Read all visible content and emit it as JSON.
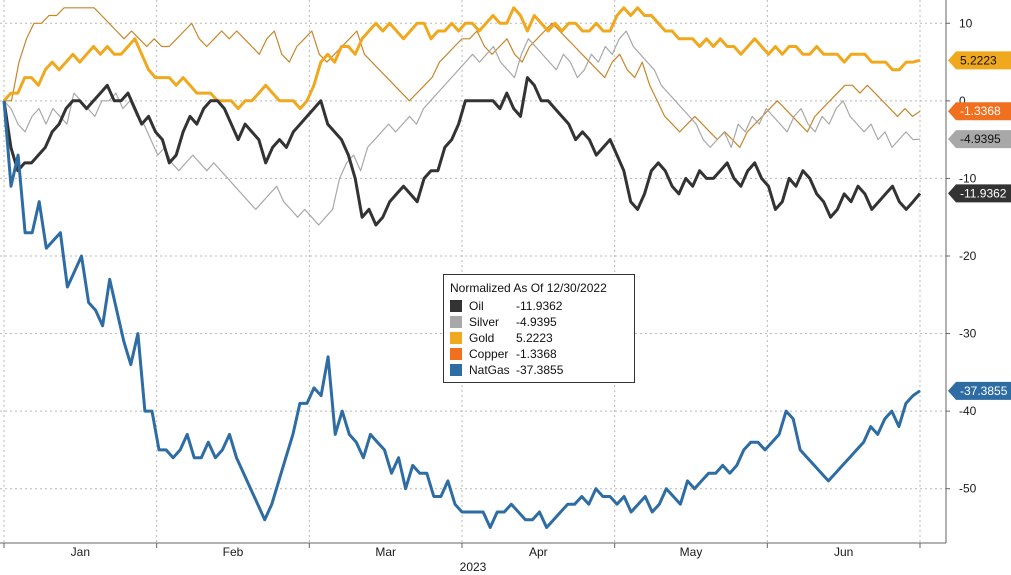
{
  "chart_data": {
    "type": "line",
    "title": "",
    "xlabel": "2023",
    "ylabel": "",
    "ylim": [
      -57,
      13
    ],
    "y_ticks": [
      10,
      0,
      -10,
      -20,
      -30,
      -40,
      -50
    ],
    "x_ticks": [
      "Jan",
      "Feb",
      "Mar",
      "Apr",
      "May",
      "Jun"
    ],
    "grid": true,
    "y_axis_side": "right",
    "legend": {
      "placement": "center",
      "title": "Normalized As Of 12/30/2022",
      "entries": [
        {
          "name": "Oil",
          "value": "-11.9362",
          "color": "#333333"
        },
        {
          "name": "Silver",
          "value": "-4.9395",
          "color": "#a8a8a8"
        },
        {
          "name": "Gold",
          "value": "5.2223",
          "color": "#f0a81e"
        },
        {
          "name": "Copper",
          "value": "-1.3368",
          "color": "#f07020"
        },
        {
          "name": "NatGas",
          "value": "-37.3855",
          "color": "#2e6ca4"
        }
      ]
    },
    "series": [
      {
        "name": "Oil",
        "color": "#333333",
        "last_label": "-11.9362",
        "badge_color": "#333333",
        "values": [
          0,
          -6,
          -9,
          -8,
          -8,
          -7,
          -6,
          -4,
          -3,
          -1,
          0,
          0,
          -1,
          0,
          1,
          2,
          0,
          0,
          1,
          -1,
          -3,
          -2,
          -4,
          -5,
          -8,
          -7,
          -4,
          -2,
          -3,
          -1,
          0,
          0,
          -1,
          -3,
          -5,
          -3,
          -4,
          -5,
          -8,
          -6,
          -5,
          -6,
          -4,
          -3,
          -2,
          -1,
          0,
          -3,
          -4,
          -5,
          -7,
          -10,
          -15,
          -14,
          -16,
          -15,
          -13,
          -12,
          -11,
          -12,
          -13,
          -10,
          -9,
          -9,
          -6,
          -5,
          -3,
          0,
          0,
          0,
          0,
          0,
          -1,
          1,
          -1,
          -2,
          3,
          2,
          0,
          0,
          -1,
          -2,
          -3,
          -5,
          -4,
          -5,
          -7,
          -6,
          -5,
          -7,
          -9,
          -13,
          -14,
          -12,
          -9,
          -8,
          -9,
          -11,
          -12,
          -10,
          -11,
          -9,
          -10,
          -10,
          -9,
          -8,
          -10,
          -11,
          -9,
          -8,
          -10,
          -11,
          -14,
          -13,
          -10,
          -11,
          -9,
          -10,
          -12,
          -13,
          -15,
          -14,
          -12,
          -13,
          -11,
          -12,
          -14,
          -13,
          -12,
          -11,
          -13,
          -14,
          -13,
          -11.9362
        ]
      },
      {
        "name": "Silver",
        "color": "#a8a8a8",
        "last_label": "-4.9395",
        "badge_color": "#a8a8a8",
        "values": [
          0,
          -1,
          -3,
          -4,
          -2,
          -1,
          -3,
          -1,
          -2,
          -3,
          1,
          0,
          -1,
          -2,
          0,
          0,
          1,
          -1,
          0,
          -2,
          -3,
          -5,
          -7,
          -6,
          -8,
          -9,
          -8,
          -7,
          -8,
          -9,
          -8,
          -9,
          -10,
          -11,
          -12,
          -13,
          -14,
          -13,
          -12,
          -11,
          -13,
          -14,
          -15,
          -14,
          -15,
          -16,
          -15,
          -14,
          -10,
          -8,
          -7,
          -9,
          -6,
          -5,
          -4,
          -3,
          -4,
          -3,
          -2,
          -3,
          -1,
          0,
          1,
          2,
          3,
          4,
          5,
          6,
          5,
          6,
          7,
          5,
          4,
          3,
          6,
          8,
          7,
          6,
          5,
          4,
          6,
          5,
          3,
          4,
          6,
          5,
          7,
          6,
          8,
          9,
          7,
          6,
          5,
          4,
          2,
          1,
          0,
          -1,
          -2,
          -3,
          -5,
          -6,
          -5,
          -4,
          -6,
          -3,
          -4,
          -2,
          -3,
          -1,
          -2,
          -3,
          -4,
          -2,
          -1,
          -3,
          -4,
          -2,
          -3,
          -1,
          0,
          -2,
          -3,
          -4,
          -3,
          -5,
          -4,
          -6,
          -5,
          -4,
          -5,
          -4.9395
        ]
      },
      {
        "name": "Gold",
        "color": "#f0a81e",
        "last_label": "5.2223",
        "badge_color": "#f0a81e",
        "values": [
          0,
          1,
          1,
          3,
          3,
          2,
          4,
          5,
          4,
          5,
          6,
          5,
          6,
          7,
          6,
          7,
          6,
          6,
          7,
          8,
          6,
          4,
          3,
          3,
          3,
          2,
          3,
          2,
          1,
          1,
          1,
          0,
          0,
          0,
          -1,
          0,
          0,
          1,
          2,
          1,
          0,
          0,
          0,
          -1,
          0,
          2,
          5,
          6,
          5,
          7,
          7,
          6,
          8,
          9,
          10,
          9,
          10,
          9,
          8,
          9,
          10,
          10,
          8,
          9,
          9,
          10,
          9,
          10,
          10,
          9,
          10,
          11,
          10,
          10,
          12,
          11,
          9,
          11,
          10,
          9,
          10,
          9,
          10,
          10,
          9,
          9,
          10,
          9,
          9,
          11,
          12,
          11,
          12,
          11,
          11,
          10,
          9,
          9,
          8,
          8,
          8,
          7,
          8,
          7,
          8,
          7,
          7,
          6,
          7,
          8,
          7,
          6,
          7,
          6,
          7,
          7,
          6,
          6,
          7,
          6,
          6,
          6,
          5,
          6,
          6,
          6,
          5,
          5,
          5,
          4,
          4,
          5,
          5,
          5.2223
        ]
      },
      {
        "name": "Copper",
        "color": "#c8862a",
        "last_label": "-1.3368",
        "badge_color": "#f07020",
        "values": [
          0,
          0,
          5,
          8,
          10,
          10,
          11,
          11,
          12,
          12,
          12,
          12,
          12,
          11,
          10,
          9,
          8,
          9,
          8,
          7,
          8,
          7,
          7,
          8,
          9,
          10,
          8,
          7,
          8,
          9,
          8,
          9,
          8,
          7,
          6,
          8,
          9,
          6,
          5,
          7,
          8,
          9,
          6,
          5,
          6,
          7,
          8,
          9,
          6,
          5,
          4,
          3,
          2,
          1,
          0,
          1,
          2,
          3,
          5,
          6,
          7,
          8,
          8,
          9,
          7,
          6,
          7,
          8,
          6,
          5,
          7,
          8,
          9,
          10,
          9,
          8,
          7,
          6,
          5,
          4,
          3,
          5,
          6,
          4,
          3,
          5,
          2,
          0,
          -2,
          -3,
          -4,
          -3,
          -2,
          -3,
          -4,
          -5,
          -4,
          -5,
          -6,
          -4,
          -3,
          -2,
          -1,
          0,
          -1,
          -2,
          -3,
          -4,
          -2,
          -1,
          0,
          1,
          2,
          2,
          1,
          2,
          1,
          0,
          -1,
          -2,
          -1,
          -2,
          -1.3368
        ]
      },
      {
        "name": "NatGas",
        "color": "#2e6ca4",
        "last_label": "-37.3855",
        "badge_color": "#2e6ca4",
        "values": [
          0,
          -11,
          -7,
          -17,
          -17,
          -13,
          -19,
          -18,
          -17,
          -24,
          -22,
          -20,
          -26,
          -27,
          -29,
          -23,
          -27,
          -31,
          -34,
          -30,
          -40,
          -40,
          -45,
          -45,
          -46,
          -45,
          -43,
          -46,
          -46,
          -44,
          -46,
          -45,
          -43,
          -46,
          -48,
          -50,
          -52,
          -54,
          -52,
          -49,
          -46,
          -43,
          -39,
          -39,
          -37,
          -38,
          -33,
          -43,
          -40,
          -43,
          -44,
          -46,
          -43,
          -44,
          -45,
          -48,
          -46,
          -50,
          -47,
          -48,
          -48,
          -51,
          -51,
          -49,
          -52,
          -53,
          -53,
          -53,
          -53,
          -55,
          -53,
          -53,
          -52,
          -53,
          -54,
          -54,
          -53,
          -55,
          -54,
          -53,
          -52,
          -52,
          -51,
          -52,
          -50,
          -51,
          -51,
          -52,
          -51,
          -53,
          -52,
          -51,
          -53,
          -52,
          -50,
          -51,
          -52,
          -49,
          -50,
          -49,
          -48,
          -48,
          -47,
          -48,
          -47,
          -45,
          -44,
          -44,
          -45,
          -44,
          -43,
          -40,
          -41,
          -45,
          -46,
          -47,
          -48,
          -49,
          -48,
          -47,
          -46,
          -45,
          -44,
          -42,
          -43,
          -41,
          -40,
          -42,
          -39,
          -38,
          -37.3855
        ]
      }
    ]
  }
}
